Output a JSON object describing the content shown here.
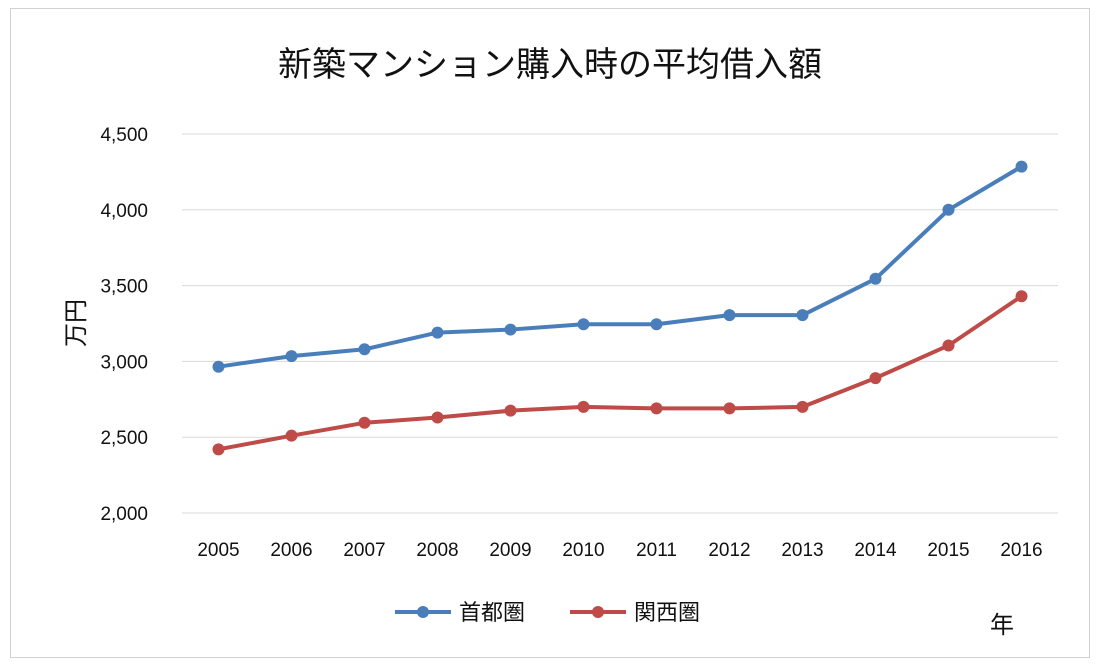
{
  "chart_data": {
    "type": "line",
    "title": "新築マンション購入時の平均借入額",
    "ylabel": "万円",
    "xlabel": "年",
    "categories": [
      "2005",
      "2006",
      "2007",
      "2008",
      "2009",
      "2010",
      "2011",
      "2012",
      "2013",
      "2014",
      "2015",
      "2016"
    ],
    "ylim": [
      2000,
      4500
    ],
    "yticks": [
      2000,
      2500,
      3000,
      3500,
      4000,
      4500
    ],
    "ytick_labels": [
      "2,000",
      "2,500",
      "3,000",
      "3,500",
      "4,000",
      "4,500"
    ],
    "grid": true,
    "legend_position": "bottom",
    "series": [
      {
        "name": "首都圏",
        "color": "#4a7ebb",
        "values": [
          2965,
          3035,
          3080,
          3190,
          3210,
          3245,
          3245,
          3305,
          3305,
          3545,
          4000,
          4285
        ]
      },
      {
        "name": "関西圏",
        "color": "#be4b48",
        "values": [
          2420,
          2510,
          2595,
          2630,
          2675,
          2700,
          2690,
          2690,
          2700,
          2890,
          3105,
          3430
        ]
      }
    ]
  }
}
